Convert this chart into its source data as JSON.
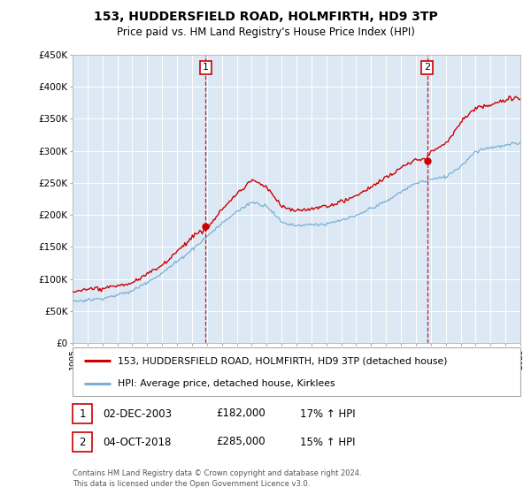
{
  "title": "153, HUDDERSFIELD ROAD, HOLMFIRTH, HD9 3TP",
  "subtitle": "Price paid vs. HM Land Registry's House Price Index (HPI)",
  "ylim": [
    0,
    450000
  ],
  "yticks": [
    0,
    50000,
    100000,
    150000,
    200000,
    250000,
    300000,
    350000,
    400000,
    450000
  ],
  "ytick_labels": [
    "£0",
    "£50K",
    "£100K",
    "£150K",
    "£200K",
    "£250K",
    "£300K",
    "£350K",
    "£400K",
    "£450K"
  ],
  "xlim": [
    1995,
    2025
  ],
  "sale1_x": 2003.92,
  "sale1_price": 182000,
  "sale2_x": 2018.75,
  "sale2_price": 285000,
  "legend_line1": "153, HUDDERSFIELD ROAD, HOLMFIRTH, HD9 3TP (detached house)",
  "legend_line2": "HPI: Average price, detached house, Kirklees",
  "footer": "Contains HM Land Registry data © Crown copyright and database right 2024.\nThis data is licensed under the Open Government Licence v3.0.",
  "line_color_red": "#cc0000",
  "line_color_blue": "#7bafd4",
  "vline_color": "#cc0000",
  "plot_bg_color": "#dce9f5",
  "grid_color": "#ffffff",
  "sale1_label": "02-DEC-2003",
  "sale1_amount": "£182,000",
  "sale1_hpi": "17% ↑ HPI",
  "sale2_label": "04-OCT-2018",
  "sale2_amount": "£285,000",
  "sale2_hpi": "15% ↑ HPI"
}
